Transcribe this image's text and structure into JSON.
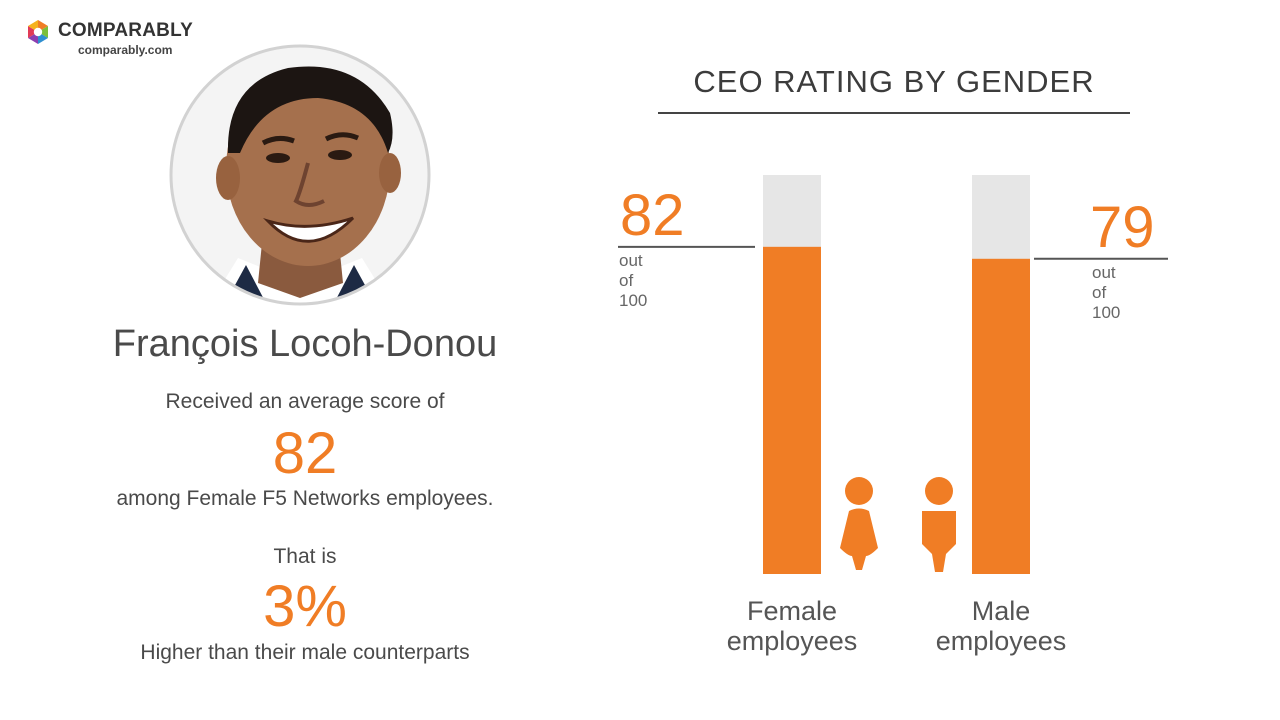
{
  "brand": {
    "name": "COMPARABLY",
    "url": "comparably.com",
    "colors": {
      "accent": "#f07d25",
      "bar_bg": "#e6e6e6",
      "text": "#4a4a4a"
    }
  },
  "profile": {
    "name": "François Locoh-Donou",
    "line1": "Received an average score of",
    "score": "82",
    "line2": "among Female F5 Networks employees.",
    "line3": "That is",
    "diff": "3%",
    "line4": "Higher than their male counterparts"
  },
  "chart_data": {
    "type": "bar",
    "title": "CEO RATING BY GENDER",
    "categories": [
      "Female employees",
      "Male employees"
    ],
    "category_lines": [
      [
        "Female",
        "employees"
      ],
      [
        "Male",
        "employees"
      ]
    ],
    "values": [
      82,
      79
    ],
    "value_labels": [
      "82",
      "79"
    ],
    "value_sublabel": "out of 100",
    "ylim": [
      0,
      100
    ],
    "icons": [
      "female-icon",
      "male-icon"
    ]
  }
}
